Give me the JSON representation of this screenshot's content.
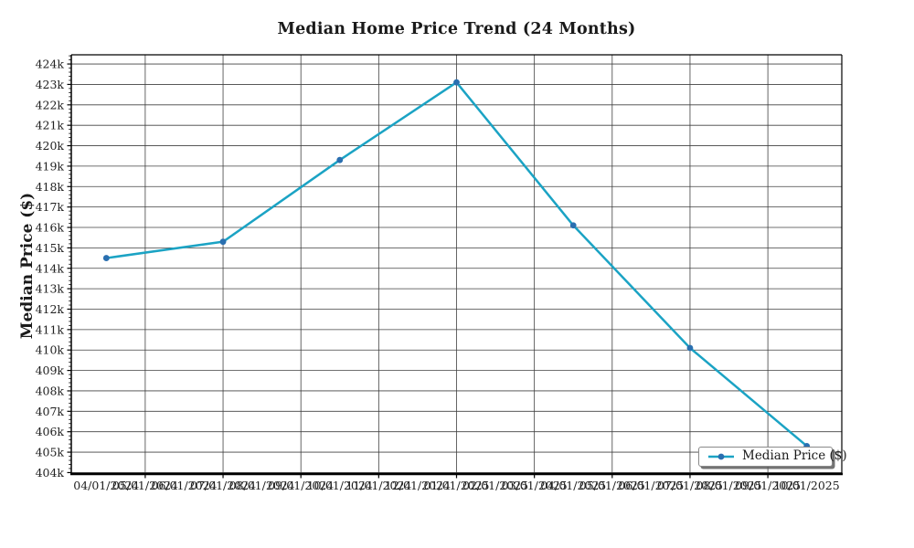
{
  "chart_data": {
    "type": "line",
    "title": "Median Home Price Trend (24 Months)",
    "ylabel": "Median Price ($)",
    "xlabel": "",
    "x_tick_labels": [
      "04/01/2024",
      "05/01/2024",
      "06/01/2024",
      "07/01/2024",
      "08/01/2024",
      "09/01/2024",
      "10/01/2024",
      "11/01/2024",
      "12/01/2024",
      "01/01/2025",
      "02/01/2025",
      "03/01/2025",
      "04/01/2025",
      "05/01/2025",
      "06/01/2025",
      "07/01/2025",
      "08/01/2025",
      "09/01/2025",
      "10/01/2025"
    ],
    "y_tick_labels": [
      "404k",
      "405k",
      "406k",
      "407k",
      "408k",
      "409k",
      "410k",
      "411k",
      "412k",
      "413k",
      "414k",
      "415k",
      "416k",
      "417k",
      "418k",
      "419k",
      "420k",
      "421k",
      "422k",
      "423k",
      "424k"
    ],
    "y_tick_values": [
      404000,
      405000,
      406000,
      407000,
      408000,
      409000,
      410000,
      411000,
      412000,
      413000,
      414000,
      415000,
      416000,
      417000,
      418000,
      419000,
      420000,
      421000,
      422000,
      423000,
      424000
    ],
    "series": [
      {
        "name": "Median Price ($)",
        "x": [
          "04/01/2024",
          "07/01/2024",
          "10/01/2024",
          "01/01/2025",
          "04/01/2025",
          "07/01/2025",
          "10/01/2025"
        ],
        "x_indices": [
          0,
          3,
          6,
          9,
          12,
          15,
          18
        ],
        "values": [
          414500,
          415300,
          419300,
          423100,
          416100,
          410100,
          405300
        ]
      }
    ],
    "legend": {
      "label": "Median Price ($)",
      "position": "lower right"
    },
    "grid": true,
    "gridline_x_indices": [
      1,
      3,
      5,
      7,
      9,
      11,
      13,
      15,
      17
    ],
    "y_minor_tick_step": 200,
    "ylim": [
      403930,
      424450
    ],
    "x_axis_padding_units": 0.9,
    "colors": {
      "line": "#1ba3c4",
      "marker": "#2a6fb0",
      "grid": "#404040",
      "spine": "#000000",
      "text": "#212121"
    }
  }
}
